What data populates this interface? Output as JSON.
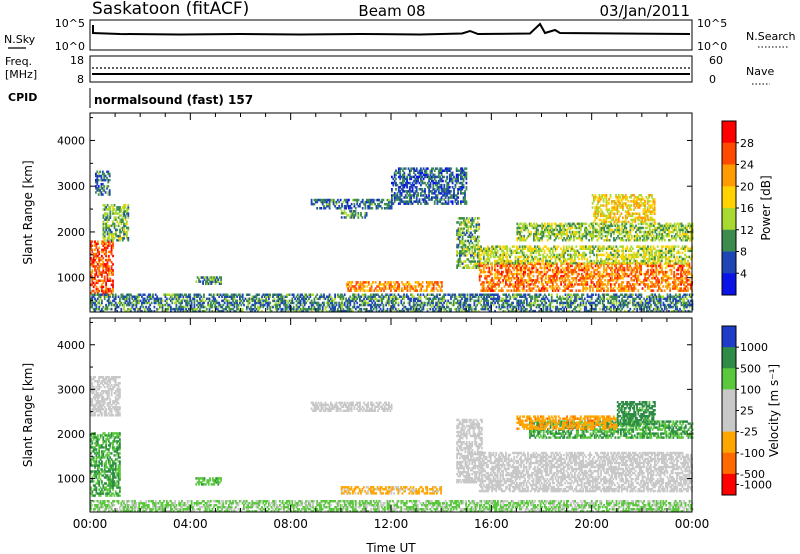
{
  "header": {
    "station": "Saskatoon (fitACF)",
    "beam": "Beam 08",
    "date": "03/Jan/2011"
  },
  "top_panels": {
    "nsky_label": "N.Sky",
    "nsky_ticks": [
      "10^5",
      "10^0"
    ],
    "nsky_right_ticks": [
      "10^5",
      "10^0"
    ],
    "nsearch_label": "N.Search",
    "freq_label": "Freq.",
    "freq_unit": "[MHz]",
    "freq_ticks": [
      "18",
      "8"
    ],
    "nave_ticks": [
      "60",
      "0"
    ],
    "nave_label": "Nave",
    "cpid_label": "CPID",
    "cpid_text": "normalsound (fast) 157"
  },
  "chart_data": [
    {
      "type": "heatmap",
      "name": "power",
      "ylabel": "Slant Range [km]",
      "yticks": [
        "1000",
        "2000",
        "3000",
        "4000"
      ],
      "ylim": [
        250,
        4600
      ],
      "xlim": [
        0,
        24
      ],
      "colorbar": {
        "label": "Power [dB]",
        "ticks": [
          "28",
          "24",
          "20",
          "16",
          "12",
          "8",
          "4"
        ],
        "colors": [
          "#ff0000",
          "#ff4a00",
          "#ff9a00",
          "#ffd200",
          "#a9d930",
          "#3c8c50",
          "#1e46b4",
          "#0a14e6"
        ]
      },
      "regions": [
        {
          "t": [
            0.0,
            0.9
          ],
          "r": [
            600,
            1800
          ],
          "level": 24
        },
        {
          "t": [
            0.5,
            1.5
          ],
          "r": [
            1800,
            2600
          ],
          "level": 10
        },
        {
          "t": [
            0.2,
            0.8
          ],
          "r": [
            2800,
            3300
          ],
          "level": 6
        },
        {
          "t": [
            4.2,
            5.2
          ],
          "r": [
            850,
            1000
          ],
          "level": 8
        },
        {
          "t": [
            8.8,
            12.0
          ],
          "r": [
            2500,
            2700
          ],
          "level": 6
        },
        {
          "t": [
            10.0,
            11.0
          ],
          "r": [
            2300,
            2450
          ],
          "level": 8
        },
        {
          "t": [
            10.2,
            14.0
          ],
          "r": [
            700,
            900
          ],
          "level": 20
        },
        {
          "t": [
            12.0,
            15.0
          ],
          "r": [
            2600,
            3400
          ],
          "level": 5
        },
        {
          "t": [
            14.6,
            15.5
          ],
          "r": [
            1200,
            2300
          ],
          "level": 10
        },
        {
          "t": [
            15.5,
            24.0
          ],
          "r": [
            700,
            1300
          ],
          "level": 22
        },
        {
          "t": [
            15.5,
            24.0
          ],
          "r": [
            1300,
            1700
          ],
          "level": 13
        },
        {
          "t": [
            17.0,
            24.0
          ],
          "r": [
            1800,
            2200
          ],
          "level": 11
        },
        {
          "t": [
            20.0,
            22.5
          ],
          "r": [
            2200,
            2800
          ],
          "level": 16
        },
        {
          "t": [
            0.0,
            24.0
          ],
          "r": [
            250,
            650
          ],
          "level": 7
        }
      ]
    },
    {
      "type": "heatmap",
      "name": "velocity",
      "ylabel": "Slant Range [km]",
      "yticks": [
        "1000",
        "2000",
        "3000",
        "4000"
      ],
      "ylim": [
        250,
        4600
      ],
      "xlim": [
        0,
        24
      ],
      "xlabel": "Time UT",
      "xticks": [
        "00:00",
        "04:00",
        "08:00",
        "12:00",
        "16:00",
        "20:00",
        "00:00"
      ],
      "colorbar": {
        "label": "Velocity [m s^-1]",
        "ticks": [
          "1000",
          "500",
          "100",
          "25",
          "-25",
          "-100",
          "-500",
          "-1000"
        ],
        "colors": [
          "#1e3cc8",
          "#2e8c46",
          "#5ac83c",
          "#c8c8c8",
          "#c8c8c8",
          "#ffa500",
          "#ff6a00",
          "#ff0000"
        ]
      },
      "regions": [
        {
          "t": [
            0.0,
            1.2
          ],
          "r": [
            600,
            2000
          ],
          "level": 300
        },
        {
          "t": [
            0.0,
            1.2
          ],
          "r": [
            2400,
            3300
          ],
          "level": 0
        },
        {
          "t": [
            4.2,
            5.2
          ],
          "r": [
            850,
            1000
          ],
          "level": 200
        },
        {
          "t": [
            8.8,
            12.0
          ],
          "r": [
            2500,
            2700
          ],
          "level": 0
        },
        {
          "t": [
            10.0,
            14.0
          ],
          "r": [
            650,
            800
          ],
          "level": -120
        },
        {
          "t": [
            14.6,
            15.6
          ],
          "r": [
            900,
            2300
          ],
          "level": 0
        },
        {
          "t": [
            15.5,
            24.0
          ],
          "r": [
            700,
            1600
          ],
          "level": 0
        },
        {
          "t": [
            17.5,
            24.0
          ],
          "r": [
            1900,
            2300
          ],
          "level": 300
        },
        {
          "t": [
            17.0,
            21.0
          ],
          "r": [
            2100,
            2400
          ],
          "level": -200
        },
        {
          "t": [
            21.0,
            22.5
          ],
          "r": [
            2200,
            2700
          ],
          "level": 400
        },
        {
          "t": [
            0.0,
            24.0
          ],
          "r": [
            250,
            500
          ],
          "level": 100
        }
      ]
    }
  ]
}
